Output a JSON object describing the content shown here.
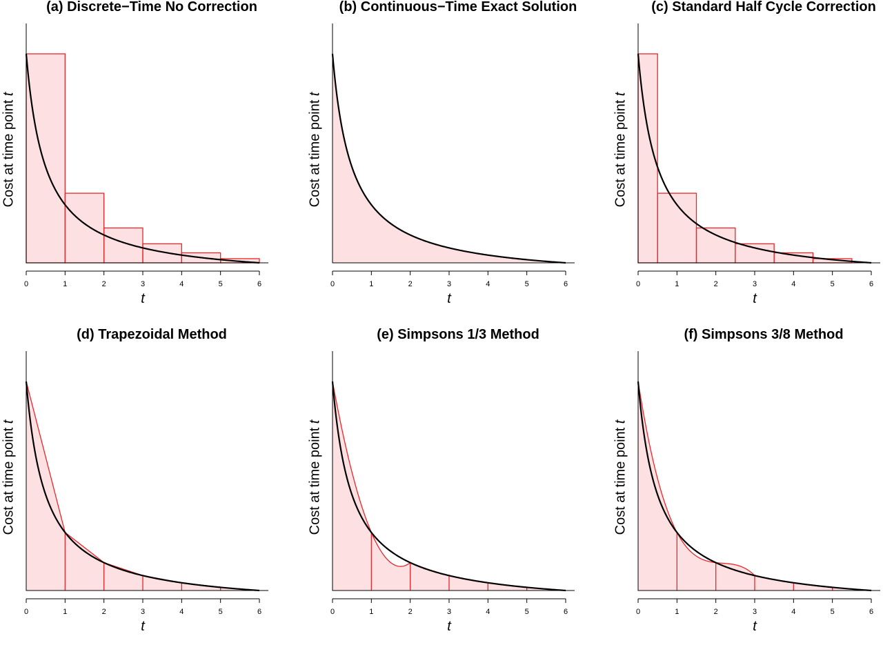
{
  "figure": {
    "colors": {
      "curve": "#000000",
      "approx_line": "#e8262a",
      "approx_fill": "#fde0e2",
      "axis": "#000000"
    }
  },
  "chart_data": [
    {
      "id": "a",
      "type": "area",
      "title": "(a) Discrete−Time No Correction",
      "ylabel": "Cost at time point",
      "ylabel_var": "t",
      "xlabel": "t",
      "x_ticks": [
        "0",
        "1",
        "2",
        "3",
        "4",
        "5",
        "6"
      ],
      "xlim": [
        0,
        6
      ],
      "ylim": [
        0,
        1
      ],
      "method": "left_riemann",
      "curve": {
        "shape": "1/(1+t)^2 shifted to 0 at t=6",
        "t": [
          0,
          0.5,
          1,
          1.5,
          2,
          2.5,
          3,
          3.5,
          4,
          4.5,
          5,
          5.5,
          6
        ],
        "y": [
          1.0,
          0.437,
          0.234,
          0.147,
          0.094,
          0.063,
          0.04,
          0.026,
          0.016,
          0.009,
          0.004,
          0.001,
          0.0
        ]
      },
      "bars": [
        {
          "x0": 0,
          "x1": 1,
          "value": 1.0
        },
        {
          "x0": 1,
          "x1": 2,
          "value": 0.333
        },
        {
          "x0": 2,
          "x1": 3,
          "value": 0.167
        },
        {
          "x0": 3,
          "x1": 4,
          "value": 0.091
        },
        {
          "x0": 4,
          "x1": 5,
          "value": 0.048
        },
        {
          "x0": 5,
          "x1": 6,
          "value": 0.02
        }
      ]
    },
    {
      "id": "b",
      "type": "area",
      "title": "(b) Continuous−Time Exact Solution",
      "ylabel": "Cost at time point",
      "ylabel_var": "t",
      "xlabel": "t",
      "x_ticks": [
        "0",
        "1",
        "2",
        "3",
        "4",
        "5",
        "6"
      ],
      "xlim": [
        0,
        6
      ],
      "ylim": [
        0,
        1
      ],
      "method": "exact"
    },
    {
      "id": "c",
      "type": "area",
      "title": "(c) Standard Half Cycle Correction",
      "ylabel": "Cost at time point",
      "ylabel_var": "t",
      "xlabel": "t",
      "x_ticks": [
        "0",
        "1",
        "2",
        "3",
        "4",
        "5",
        "6"
      ],
      "xlim": [
        0,
        6
      ],
      "ylim": [
        0,
        1
      ],
      "method": "half_cycle",
      "bars": [
        {
          "x0": 0,
          "x1": 0.5,
          "value": 1.0
        },
        {
          "x0": 0.5,
          "x1": 1.5,
          "value": 0.333
        },
        {
          "x0": 1.5,
          "x1": 2.5,
          "value": 0.167
        },
        {
          "x0": 2.5,
          "x1": 3.5,
          "value": 0.091
        },
        {
          "x0": 3.5,
          "x1": 4.5,
          "value": 0.048
        },
        {
          "x0": 4.5,
          "x1": 5.5,
          "value": 0.02
        }
      ]
    },
    {
      "id": "d",
      "type": "area",
      "title": "(d) Trapezoidal Method",
      "ylabel": "Cost at time point",
      "ylabel_var": "t",
      "xlabel": "t",
      "x_ticks": [
        "0",
        "1",
        "2",
        "3",
        "4",
        "5",
        "6"
      ],
      "xlim": [
        0,
        6
      ],
      "ylim": [
        0,
        1
      ],
      "method": "trapezoidal"
    },
    {
      "id": "e",
      "type": "area",
      "title": "(e) Simpsons 1/3 Method",
      "ylabel": "Cost at time point",
      "ylabel_var": "t",
      "xlabel": "t",
      "x_ticks": [
        "0",
        "1",
        "2",
        "3",
        "4",
        "5",
        "6"
      ],
      "xlim": [
        0,
        6
      ],
      "ylim": [
        0,
        1
      ],
      "method": "simpson_13"
    },
    {
      "id": "f",
      "type": "area",
      "title": "(f) Simpsons 3/8 Method",
      "ylabel": "Cost at time point",
      "ylabel_var": "t",
      "xlabel": "t",
      "x_ticks": [
        "0",
        "1",
        "2",
        "3",
        "4",
        "5",
        "6"
      ],
      "xlim": [
        0,
        6
      ],
      "ylim": [
        0,
        1
      ],
      "method": "simpson_38"
    }
  ]
}
